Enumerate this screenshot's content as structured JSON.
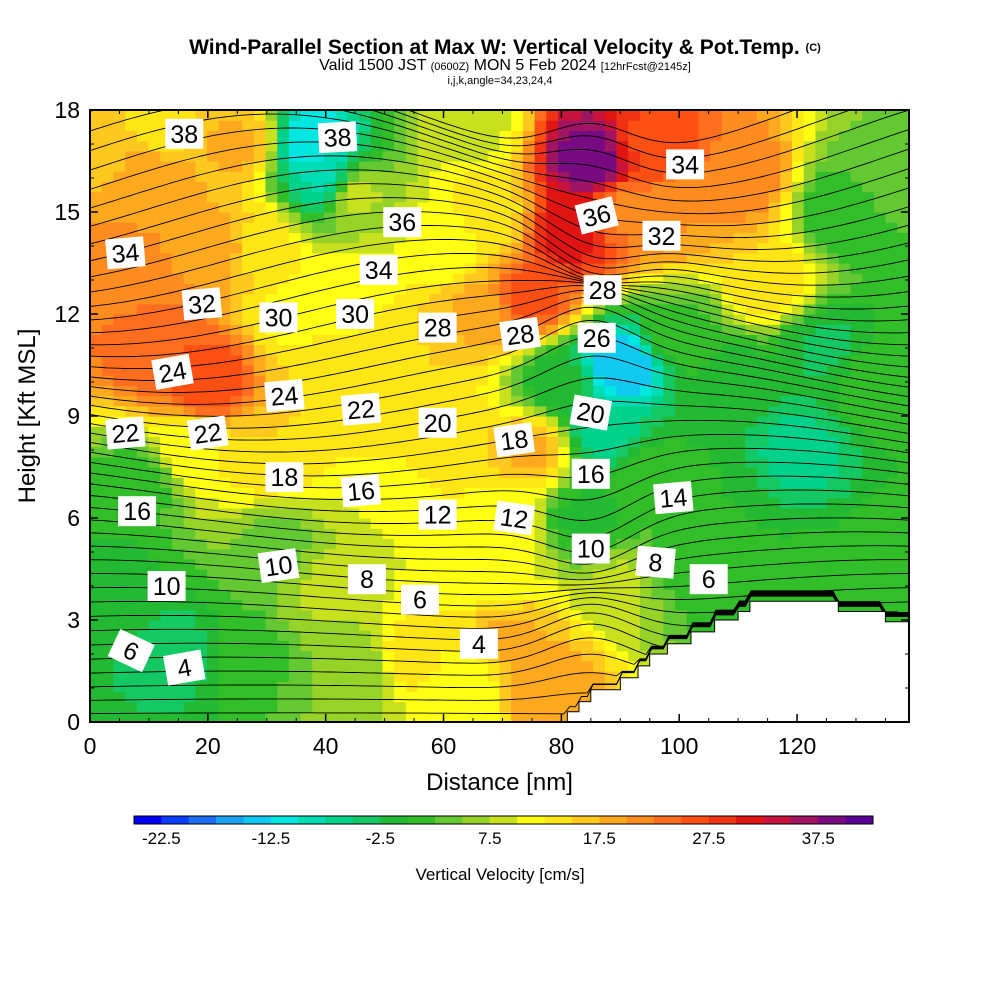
{
  "title": {
    "main": "Wind-Parallel Section at Max W: Vertical Velocity & Pot.Temp.",
    "copyright": "(C)",
    "valid": "Valid 1500 JST",
    "zulu": "(0600Z)",
    "date": "MON 5 Feb 2024",
    "fcst": "[12hrFcst@2145z]",
    "indices": "i,j,k,angle=34,23,24,4"
  },
  "chart_data": {
    "type": "heatmap",
    "xlabel": "Distance [nm]",
    "ylabel": "Height [Kft MSL]",
    "xlim": [
      0,
      139
    ],
    "ylim": [
      0,
      18
    ],
    "x_ticks": [
      0,
      20,
      40,
      60,
      80,
      100,
      120
    ],
    "y_ticks": [
      0,
      3,
      6,
      9,
      12,
      15,
      18
    ],
    "colorbar": {
      "label": "Vertical Velocity [cm/s]",
      "min": -25,
      "max": 42.5,
      "step": 2.5,
      "tick_labels": [
        "-22.5",
        "-12.5",
        "-2.5",
        "7.5",
        "17.5",
        "27.5",
        "37.5"
      ],
      "colors": [
        "#0000ff",
        "#0a3cff",
        "#1e6ef5",
        "#1ea0f0",
        "#10c8f0",
        "#00e6e0",
        "#00dcb4",
        "#00d28c",
        "#14c864",
        "#23b932",
        "#32be28",
        "#64c832",
        "#96d228",
        "#c8e11e",
        "#ffff14",
        "#ffe614",
        "#ffc81e",
        "#ffaa1e",
        "#ff8c1e",
        "#ff6e1e",
        "#ff5014",
        "#f03214",
        "#e11414",
        "#c8143c",
        "#a01464",
        "#780a82",
        "#5a0096"
      ]
    },
    "potential_temperature_contour_labels": [
      "38",
      "38",
      "36",
      "36",
      "34",
      "34",
      "34",
      "32",
      "32",
      "30",
      "30",
      "28",
      "28",
      "28",
      "26",
      "24",
      "24",
      "22",
      "22",
      "22",
      "20",
      "20",
      "18",
      "18",
      "16",
      "16",
      "16",
      "14",
      "12",
      "12",
      "10",
      "10",
      "10",
      "8",
      "8",
      "6",
      "6",
      "6",
      "4",
      "4"
    ],
    "terrain_profile": [
      [
        80,
        0
      ],
      [
        81,
        0.3
      ],
      [
        83,
        0.6
      ],
      [
        85,
        0.95
      ],
      [
        90,
        1.3
      ],
      [
        93,
        1.65
      ],
      [
        95,
        2
      ],
      [
        98,
        2.3
      ],
      [
        102,
        2.65
      ],
      [
        106,
        3
      ],
      [
        110,
        3.25
      ],
      [
        112,
        3.55
      ],
      [
        116,
        3.55
      ],
      [
        125,
        3.55
      ],
      [
        127,
        3.25
      ],
      [
        133,
        3.25
      ],
      [
        135,
        2.95
      ],
      [
        139,
        2.95
      ]
    ],
    "velocity_cells": [
      {
        "x": 5,
        "y": 13,
        "v": 22
      },
      {
        "x": 12,
        "y": 11,
        "v": 25
      },
      {
        "x": 20,
        "y": 10,
        "v": 27
      },
      {
        "x": 22,
        "y": 14,
        "v": 20
      },
      {
        "x": 10,
        "y": 16,
        "v": 20
      },
      {
        "x": 28,
        "y": 14,
        "v": 14
      },
      {
        "x": 25,
        "y": 17,
        "v": 18
      },
      {
        "x": 45,
        "y": 15.5,
        "v": 8
      },
      {
        "x": 45,
        "y": 12.5,
        "v": 12
      },
      {
        "x": 55,
        "y": 11,
        "v": 15
      },
      {
        "x": 65,
        "y": 12,
        "v": 18
      },
      {
        "x": 68,
        "y": 15,
        "v": 14
      },
      {
        "x": 75,
        "y": 12.5,
        "v": 26
      },
      {
        "x": 82,
        "y": 14.5,
        "v": 32
      },
      {
        "x": 85,
        "y": 16.5,
        "v": 40
      },
      {
        "x": 90,
        "y": 15,
        "v": 22
      },
      {
        "x": 95,
        "y": 17,
        "v": 27
      },
      {
        "x": 100,
        "y": 15,
        "v": 20
      },
      {
        "x": 110,
        "y": 16,
        "v": 22
      },
      {
        "x": 115,
        "y": 13,
        "v": 15
      },
      {
        "x": 128,
        "y": 15,
        "v": 0
      },
      {
        "x": 133,
        "y": 10,
        "v": 2
      },
      {
        "x": 120,
        "y": 8,
        "v": -6
      },
      {
        "x": 110,
        "y": 10,
        "v": -1
      },
      {
        "x": 105,
        "y": 7,
        "v": 0
      },
      {
        "x": 90,
        "y": 10.5,
        "v": -15
      },
      {
        "x": 87,
        "y": 8.5,
        "v": -6
      },
      {
        "x": 84,
        "y": 6,
        "v": -1
      },
      {
        "x": 75,
        "y": 8,
        "v": 18
      },
      {
        "x": 70,
        "y": 6,
        "v": 12
      },
      {
        "x": 60,
        "y": 8,
        "v": 15
      },
      {
        "x": 50,
        "y": 9,
        "v": 13
      },
      {
        "x": 40,
        "y": 10,
        "v": 15
      },
      {
        "x": 30,
        "y": 8,
        "v": 15
      },
      {
        "x": 18,
        "y": 8,
        "v": 12
      },
      {
        "x": 8,
        "y": 7,
        "v": 1
      },
      {
        "x": 5,
        "y": 4,
        "v": -1
      },
      {
        "x": 15,
        "y": 2,
        "v": -4
      },
      {
        "x": 25,
        "y": 2,
        "v": 1
      },
      {
        "x": 40,
        "y": 4,
        "v": 8
      },
      {
        "x": 45,
        "y": 1.5,
        "v": 5
      },
      {
        "x": 55,
        "y": 2,
        "v": 14
      },
      {
        "x": 63,
        "y": 1,
        "v": 10
      },
      {
        "x": 72,
        "y": 2.5,
        "v": 18
      },
      {
        "x": 78,
        "y": 1,
        "v": 20
      },
      {
        "x": 70,
        "y": 4.5,
        "v": 10
      },
      {
        "x": 60,
        "y": 5,
        "v": 10
      },
      {
        "x": 90,
        "y": 4,
        "v": 8
      },
      {
        "x": 100,
        "y": 4.5,
        "v": 2
      },
      {
        "x": 110,
        "y": 4.2,
        "v": 0
      },
      {
        "x": 125,
        "y": 4,
        "v": 1
      },
      {
        "x": 95,
        "y": 7,
        "v": 2
      },
      {
        "x": 38,
        "y": 17,
        "v": -12
      },
      {
        "x": 40,
        "y": 16,
        "v": -8
      },
      {
        "x": 12,
        "y": 17.5,
        "v": 14
      },
      {
        "x": 2,
        "y": 17,
        "v": 16
      },
      {
        "x": 35,
        "y": 12,
        "v": 12
      },
      {
        "x": 65,
        "y": 17.5,
        "v": 9
      },
      {
        "x": 60,
        "y": 14,
        "v": 10
      },
      {
        "x": 80,
        "y": 10,
        "v": -2
      },
      {
        "x": 137,
        "y": 5,
        "v": 1
      },
      {
        "x": 135,
        "y": 16,
        "v": 4
      },
      {
        "x": 125,
        "y": 11,
        "v": -3
      },
      {
        "x": 100,
        "y": 11.5,
        "v": 2
      },
      {
        "x": 32,
        "y": 5,
        "v": 4
      },
      {
        "x": 52,
        "y": 6.5,
        "v": 10
      }
    ]
  }
}
